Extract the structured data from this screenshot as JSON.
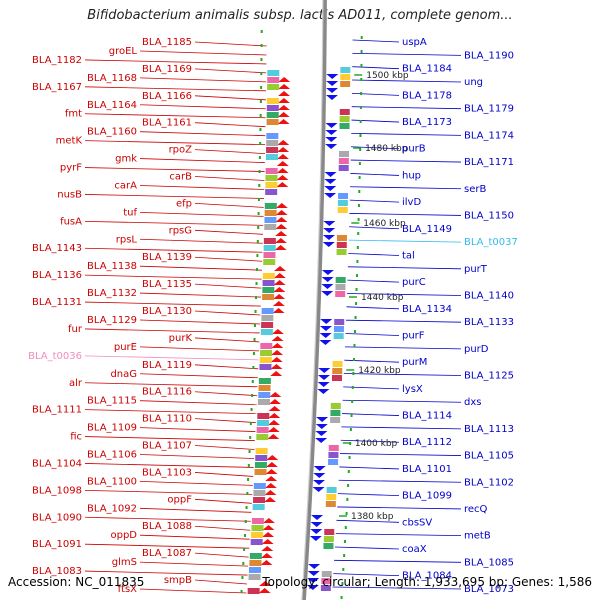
{
  "title": "Bifidobacterium animalis subsp. lactis AD011, complete genom...",
  "footer": {
    "accession": "Accession: NC_011835",
    "stats": "Topology: circular; Length: 1,933,695 bp; Genes: 1,586"
  },
  "colors": {
    "forward_label": "#cc0000",
    "reverse_label": "#0000cc",
    "trna_forward_label": "#f08cc0",
    "trna_reverse_label": "#33bbee",
    "forward_arrow": "#ee1111",
    "reverse_arrow": "#1111ee",
    "backbone": "#888888",
    "tick": "#22aa22"
  },
  "kbp_marks": [
    "1500 kbp",
    "1480 kbp",
    "1460 kbp",
    "1440 kbp",
    "1420 kbp",
    "1400 kbp",
    "1380 kbp"
  ],
  "left_labels": [
    "BLA_1185",
    "groEL",
    "BLA_1182",
    "BLA_1169",
    "BLA_1168",
    "BLA_1167",
    "BLA_1166",
    "BLA_1164",
    "fmt",
    "BLA_1161",
    "BLA_1160",
    "metK",
    "rpoZ",
    "gmk",
    "pyrF",
    "carB",
    "carA",
    "nusB",
    "efp",
    "tuf",
    "fusA",
    "rpsG",
    "rpsL",
    "BLA_1143",
    "BLA_1139",
    "BLA_1138",
    "BLA_1136",
    "BLA_1135",
    "BLA_1132",
    "BLA_1131",
    "BLA_1130",
    "BLA_1129",
    "fur",
    "purK",
    "purE",
    "BLA_t0036",
    "BLA_1119",
    "dnaG",
    "alr",
    "BLA_1116",
    "BLA_1115",
    "BLA_1111",
    "BLA_1110",
    "BLA_1109",
    "fic",
    "BLA_1107",
    "BLA_1106",
    "BLA_1104",
    "BLA_1103",
    "BLA_1100",
    "BLA_1098",
    "oppF",
    "BLA_1092",
    "BLA_1090",
    "BLA_1088",
    "oppD",
    "BLA_1091",
    "BLA_1087",
    "glmS",
    "BLA_1083",
    "smpB",
    "ftsX"
  ],
  "right_labels": [
    "uspA",
    "BLA_1190",
    "BLA_1184",
    "ung",
    "BLA_1178",
    "BLA_1179",
    "BLA_1173",
    "BLA_1174",
    "purB",
    "BLA_1171",
    "hup",
    "serB",
    "ilvD",
    "BLA_1150",
    "BLA_1149",
    "BLA_t0037",
    "tal",
    "purT",
    "purC",
    "BLA_1140",
    "BLA_1134",
    "BLA_1133",
    "purF",
    "purD",
    "purM",
    "BLA_1125",
    "lysX",
    "dxs",
    "BLA_1114",
    "BLA_1113",
    "BLA_1112",
    "BLA_1105",
    "BLA_1101",
    "BLA_1102",
    "BLA_1099",
    "recQ",
    "cbsSV",
    "metB",
    "coaX",
    "BLA_1085",
    "BLA_1084",
    "BLA_1073"
  ]
}
